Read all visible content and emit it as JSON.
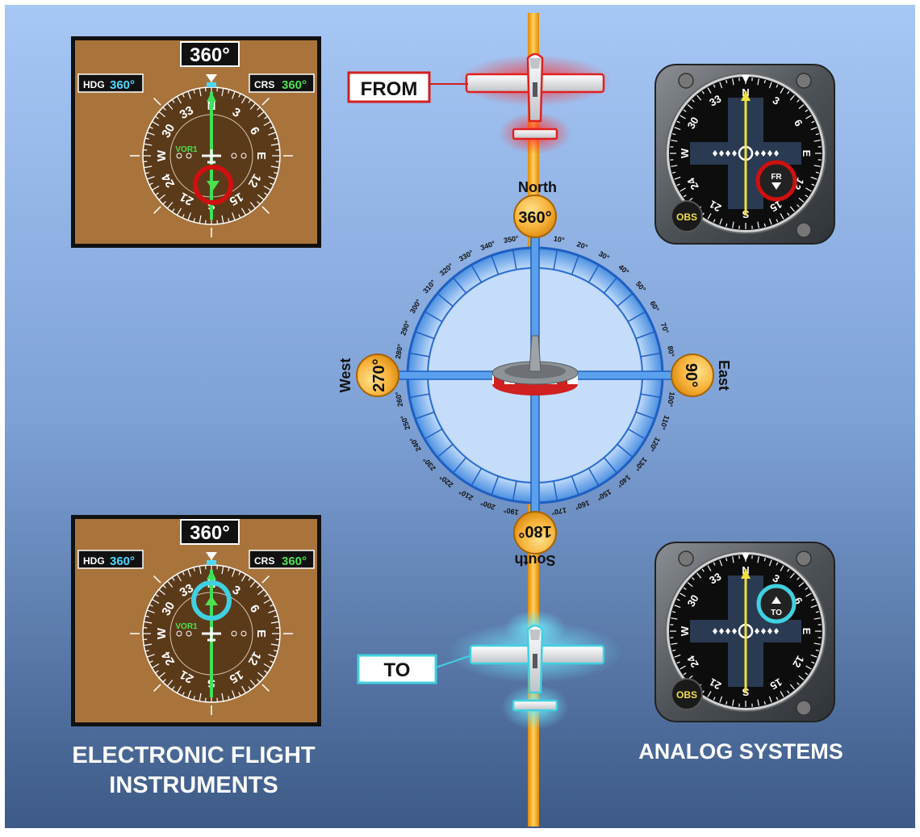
{
  "compass_rose": {
    "north_label": "North",
    "south_label": "South",
    "east_label": "East",
    "west_label": "West",
    "north_value": "360°",
    "south_value": "180°",
    "east_value": "90°",
    "west_value": "270°",
    "degree_labels": [
      "10°",
      "20°",
      "30°",
      "40°",
      "50°",
      "60°",
      "70°",
      "80°",
      "100°",
      "110°",
      "120°",
      "130°",
      "140°",
      "150°",
      "160°",
      "170°",
      "190°",
      "200°",
      "210°",
      "220°",
      "230°",
      "240°",
      "250°",
      "260°",
      "280°",
      "290°",
      "300°",
      "310°",
      "320°",
      "330°",
      "340°",
      "350°"
    ]
  },
  "from_callout": {
    "label": "FROM"
  },
  "to_callout": {
    "label": "TO"
  },
  "efis_top": {
    "course_box": "360°",
    "hdg_label": "HDG",
    "hdg_value": "360°",
    "crs_label": "CRS",
    "crs_value": "360°",
    "nav_source": "VOR1",
    "dial_labels": [
      "N",
      "3",
      "6",
      "E",
      "12",
      "15",
      "S",
      "21",
      "24",
      "W",
      "30",
      "33"
    ]
  },
  "efis_bottom": {
    "course_box": "360°",
    "hdg_label": "HDG",
    "hdg_value": "360°",
    "crs_label": "CRS",
    "crs_value": "360°",
    "nav_source": "VOR1",
    "dial_labels": [
      "N",
      "3",
      "6",
      "E",
      "12",
      "15",
      "S",
      "21",
      "24",
      "W",
      "30",
      "33"
    ]
  },
  "analog_top": {
    "flag": "FR",
    "knob": "OBS",
    "dial_labels": [
      "N",
      "3",
      "6",
      "E",
      "12",
      "15",
      "S",
      "21",
      "24",
      "W",
      "30",
      "33"
    ]
  },
  "analog_bottom": {
    "flag": "TO",
    "knob": "OBS",
    "dial_labels": [
      "N",
      "3",
      "6",
      "E",
      "12",
      "15",
      "S",
      "21",
      "24",
      "W",
      "30",
      "33"
    ]
  },
  "captions": {
    "electronic_line1": "ELECTRONIC FLIGHT",
    "electronic_line2": "INSTRUMENTS",
    "analog": "ANALOG SYSTEMS"
  },
  "colors": {
    "from_highlight": "#e02020",
    "to_highlight": "#40d0e0",
    "cdi_green": "#3fe05a",
    "course_yellow": "#f0e040",
    "efis_brown": "#a8743c",
    "course_line": "#f5a000"
  }
}
